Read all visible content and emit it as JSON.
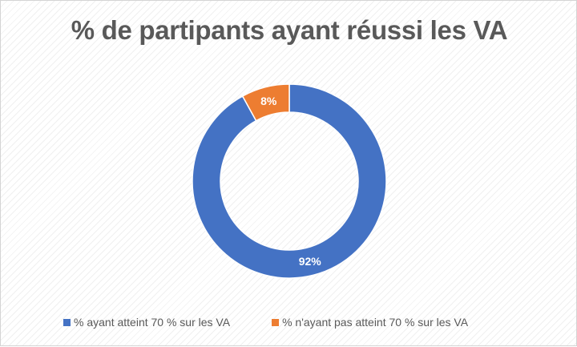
{
  "chart_data": {
    "type": "pie",
    "variant": "doughnut",
    "title": "% de partipants ayant réussi les VA",
    "legend_position": "bottom",
    "slices": [
      {
        "label": "% ayant atteint 70 % sur les VA",
        "value": 92,
        "value_label": "92%",
        "color": "#4472C4"
      },
      {
        "label": "% n'ayant pas atteint 70 % sur les VA",
        "value": 8,
        "value_label": "8%",
        "color": "#ED7D31"
      }
    ]
  }
}
